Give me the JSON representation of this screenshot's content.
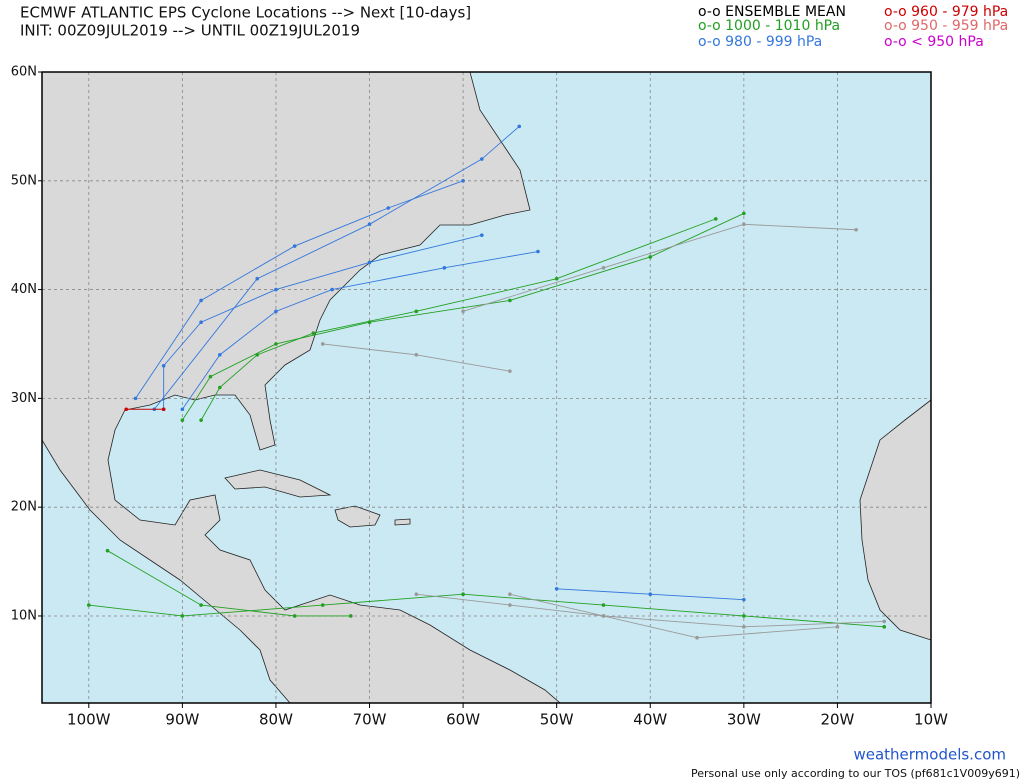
{
  "map": {
    "title": "ECMWF ATLANTIC EPS Cyclone Locations --> Next [10-days]",
    "subtitle": "INIT: 00Z09JUL2019 --> UNTIL 00Z19JUL2019",
    "legend": [
      {
        "label": "o-o ENSEMBLE MEAN",
        "color": "#000000"
      },
      {
        "label": "o-o 1000 - 1010 hPa",
        "color": "#22a022"
      },
      {
        "label": "o-o 980 - 999 hPa",
        "color": "#3377dd"
      },
      {
        "label": "o-o 960 - 979 hPa",
        "color": "#cc0000"
      },
      {
        "label": "o-o 950 - 959 hPa",
        "color": "#e06868"
      },
      {
        "label": "o-o < 950 hPa",
        "color": "#cc00cc"
      }
    ],
    "xlim": [
      -105,
      -10
    ],
    "ylim": [
      2,
      60
    ],
    "xticks": [
      {
        "value": -100,
        "label": "100W"
      },
      {
        "value": -90,
        "label": "90W"
      },
      {
        "value": -80,
        "label": "80W"
      },
      {
        "value": -70,
        "label": "70W"
      },
      {
        "value": -60,
        "label": "60W"
      },
      {
        "value": -50,
        "label": "50W"
      },
      {
        "value": -40,
        "label": "40W"
      },
      {
        "value": -30,
        "label": "30W"
      },
      {
        "value": -20,
        "label": "20W"
      },
      {
        "value": -10,
        "label": "10W"
      }
    ],
    "yticks": [
      {
        "value": 10,
        "label": "10N"
      },
      {
        "value": 20,
        "label": "20N"
      },
      {
        "value": 30,
        "label": "30N"
      },
      {
        "value": 40,
        "label": "40N"
      },
      {
        "value": 50,
        "label": "50N"
      },
      {
        "value": 60,
        "label": "60N"
      }
    ],
    "grid": true,
    "tracks": [
      {
        "color": "#22a022",
        "lon": [
          -88,
          -86,
          -82,
          -76,
          -65,
          -50,
          -33
        ],
        "lat": [
          28,
          31,
          34,
          36,
          38,
          41,
          46.5
        ]
      },
      {
        "color": "#22a022",
        "lon": [
          -90,
          -87,
          -80,
          -70,
          -55,
          -40,
          -30
        ],
        "lat": [
          28,
          32,
          35,
          37,
          39,
          43,
          47
        ]
      },
      {
        "color": "#999999",
        "lon": [
          -75,
          -65,
          -55
        ],
        "lat": [
          35,
          34,
          32.5
        ]
      },
      {
        "color": "#999999",
        "lon": [
          -60,
          -45,
          -30,
          -18
        ],
        "lat": [
          38,
          42,
          46,
          45.5
        ]
      },
      {
        "color": "#3377dd",
        "lon": [
          -92,
          -92,
          -88,
          -80,
          -70,
          -58
        ],
        "lat": [
          29,
          33,
          37,
          40,
          42.5,
          45
        ]
      },
      {
        "color": "#3377dd",
        "lon": [
          -90,
          -86,
          -80,
          -74,
          -62,
          -52
        ],
        "lat": [
          29,
          34,
          38,
          40,
          42,
          43.5
        ]
      },
      {
        "color": "#3377dd",
        "lon": [
          -95,
          -88,
          -78,
          -68,
          -60
        ],
        "lat": [
          30,
          39,
          44,
          47.5,
          50
        ]
      },
      {
        "color": "#3377dd",
        "lon": [
          -93,
          -82,
          -70,
          -58,
          -54
        ],
        "lat": [
          29,
          41,
          46,
          52,
          55
        ]
      },
      {
        "color": "#22a022",
        "lon": [
          -15,
          -30,
          -45,
          -60,
          -75,
          -90,
          -100
        ],
        "lat": [
          9,
          10,
          11,
          12,
          11,
          10,
          11
        ]
      },
      {
        "color": "#999999",
        "lon": [
          -15,
          -30,
          -45,
          -55,
          -65
        ],
        "lat": [
          9.5,
          9,
          10,
          11,
          12
        ]
      },
      {
        "color": "#999999",
        "lon": [
          -20,
          -35,
          -45,
          -55
        ],
        "lat": [
          9,
          8,
          10,
          12
        ]
      },
      {
        "color": "#3377dd",
        "lon": [
          -50,
          -40,
          -30
        ],
        "lat": [
          12.5,
          12,
          11.5
        ]
      },
      {
        "color": "#22a022",
        "lon": [
          -98,
          -88,
          -78,
          -72
        ],
        "lat": [
          16,
          11,
          10,
          10
        ]
      },
      {
        "color": "#cc0000",
        "lon": [
          -96,
          -92
        ],
        "lat": [
          29,
          29
        ]
      }
    ],
    "credit": "weathermodels.com",
    "footer": "Personal use only according to our TOS (pf681c1V009y691)"
  }
}
